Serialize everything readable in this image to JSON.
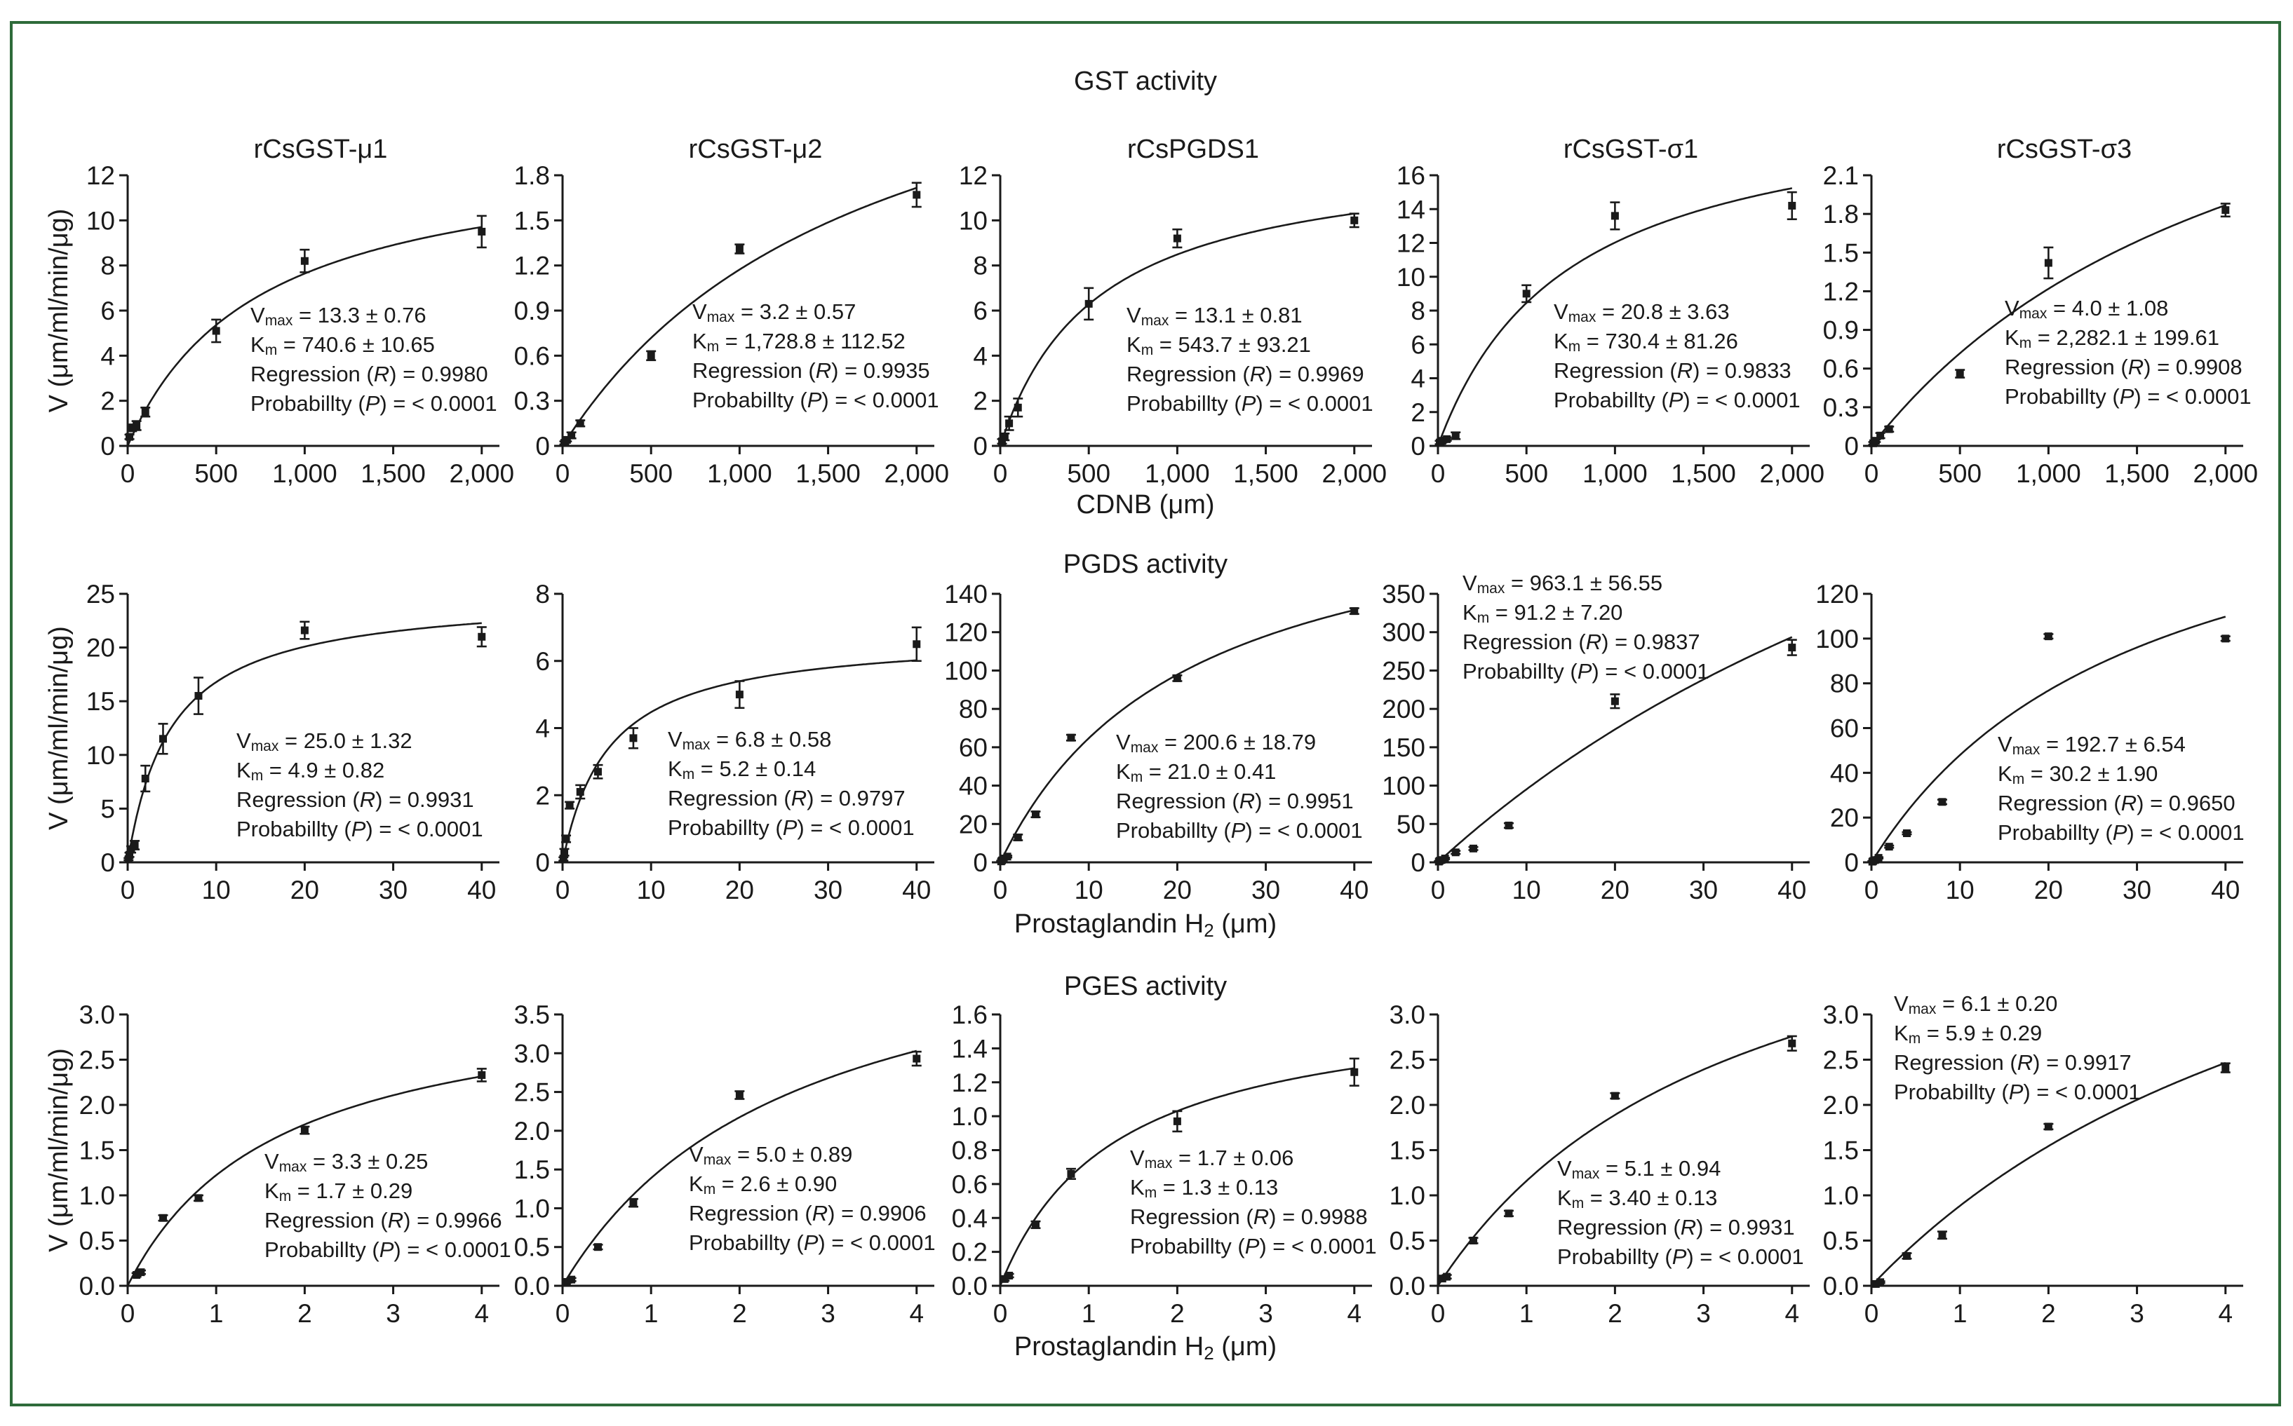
{
  "figure": {
    "border_color": "#2e6b3a",
    "ink_color": "#1a1a1a",
    "rows": [
      {
        "title": "GST activity",
        "x_axis_label": "CDNB (μm)"
      },
      {
        "title": "PGDS activity",
        "x_axis_label_main": "Prostaglandin H",
        "x_axis_label_sub": "2",
        "x_axis_label_tail": " (μm)"
      },
      {
        "title": "PGES activity",
        "x_axis_label_main": "Prostaglandin H",
        "x_axis_label_sub": "2",
        "x_axis_label_tail": " (μm)"
      }
    ],
    "y_axis_label": "V (μm/ml/min/μg)",
    "stats_labels": {
      "vmax_main": "V",
      "vmax_sub": "max",
      "km_main": "K",
      "km_sub": "m",
      "regression_prefix": "Regression (",
      "regression_var": "R",
      "probability_prefix": "Probabillty (",
      "probability_var": "P",
      "probability_value": "< 0.0001"
    }
  },
  "chart_data": [
    {
      "type": "scatter",
      "row": 0,
      "col": 0,
      "title": "rCsGST-μ1",
      "xlim": [
        0,
        2100
      ],
      "ylim": [
        0,
        12
      ],
      "xticks": [
        0,
        500,
        1000,
        1500,
        2000
      ],
      "xtick_labels": [
        "0",
        "500",
        "1,000",
        "1,500",
        "2,000"
      ],
      "yticks": [
        0,
        2,
        4,
        6,
        8,
        10,
        12
      ],
      "ytick_labels": [
        "0",
        "2",
        "4",
        "6",
        "8",
        "10",
        "12"
      ],
      "x": [
        10,
        25,
        50,
        100,
        500,
        1000,
        2000
      ],
      "y": [
        0.4,
        0.8,
        0.9,
        1.5,
        5.1,
        8.2,
        9.5
      ],
      "err": [
        0.1,
        0.15,
        0.2,
        0.2,
        0.5,
        0.5,
        0.7
      ],
      "vmax": 13.3,
      "km": 740.6,
      "fit_vmax": 13.3,
      "fit_km": 740.6,
      "vmax_text": "13.3 ± 0.76",
      "km_text": "740.6 ± 10.65",
      "regression": "0.9980"
    },
    {
      "type": "scatter",
      "row": 0,
      "col": 1,
      "title": "rCsGST-μ2",
      "xlim": [
        0,
        2100
      ],
      "ylim": [
        0,
        1.8
      ],
      "xticks": [
        0,
        500,
        1000,
        1500,
        2000
      ],
      "xtick_labels": [
        "0",
        "500",
        "1,000",
        "1,500",
        "2,000"
      ],
      "yticks": [
        0,
        0.3,
        0.6,
        0.9,
        1.2,
        1.5,
        1.8
      ],
      "ytick_labels": [
        "0",
        "0.3",
        "0.6",
        "0.9",
        "1.2",
        "1.5",
        "1.8"
      ],
      "x": [
        10,
        25,
        50,
        100,
        500,
        1000,
        2000
      ],
      "y": [
        0.02,
        0.04,
        0.07,
        0.15,
        0.6,
        1.31,
        1.67
      ],
      "err": [
        0.01,
        0.01,
        0.02,
        0.02,
        0.03,
        0.03,
        0.08
      ],
      "vmax": 3.2,
      "km": 1728.8,
      "fit_vmax": 3.2,
      "fit_km": 1728.8,
      "vmax_text": "3.2 ± 0.57",
      "km_text": "1,728.8 ± 112.52",
      "regression": "0.9935"
    },
    {
      "type": "scatter",
      "row": 0,
      "col": 2,
      "title": "rCsPGDS1",
      "xlim": [
        0,
        2100
      ],
      "ylim": [
        0,
        12
      ],
      "xticks": [
        0,
        500,
        1000,
        1500,
        2000
      ],
      "xtick_labels": [
        "0",
        "500",
        "1,000",
        "1,500",
        "2,000"
      ],
      "yticks": [
        0,
        2,
        4,
        6,
        8,
        10,
        12
      ],
      "ytick_labels": [
        "0",
        "2",
        "4",
        "6",
        "8",
        "10",
        "12"
      ],
      "x": [
        10,
        25,
        50,
        100,
        500,
        1000,
        2000
      ],
      "y": [
        0.2,
        0.4,
        1.0,
        1.7,
        6.3,
        9.2,
        10.0
      ],
      "err": [
        0.1,
        0.15,
        0.3,
        0.4,
        0.7,
        0.4,
        0.3
      ],
      "vmax": 13.1,
      "km": 543.7,
      "fit_vmax": 13.1,
      "fit_km": 543.7,
      "vmax_text": "13.1 ± 0.81",
      "km_text": "543.7 ± 93.21",
      "regression": "0.9969"
    },
    {
      "type": "scatter",
      "row": 0,
      "col": 3,
      "title": "rCsGST-σ1",
      "xlim": [
        0,
        2100
      ],
      "ylim": [
        0,
        16
      ],
      "xticks": [
        0,
        500,
        1000,
        1500,
        2000
      ],
      "xtick_labels": [
        "0",
        "500",
        "1,000",
        "1,500",
        "2,000"
      ],
      "yticks": [
        0,
        2,
        4,
        6,
        8,
        10,
        12,
        14,
        16
      ],
      "ytick_labels": [
        "0",
        "2",
        "4",
        "6",
        "8",
        "10",
        "12",
        "14",
        "16"
      ],
      "x": [
        10,
        25,
        50,
        100,
        500,
        1000,
        2000
      ],
      "y": [
        0.2,
        0.3,
        0.4,
        0.6,
        9.0,
        13.6,
        14.2
      ],
      "err": [
        0.1,
        0.1,
        0.1,
        0.2,
        0.5,
        0.8,
        0.8
      ],
      "vmax": 20.8,
      "km": 730.4,
      "fit_vmax": 20.8,
      "fit_km": 730.4,
      "vmax_text": "20.8 ± 3.63",
      "km_text": "730.4 ± 81.26",
      "regression": "0.9833"
    },
    {
      "type": "scatter",
      "row": 0,
      "col": 4,
      "title": "rCsGST-σ3",
      "xlim": [
        0,
        2100
      ],
      "ylim": [
        0,
        2.1
      ],
      "xticks": [
        0,
        500,
        1000,
        1500,
        2000
      ],
      "xtick_labels": [
        "0",
        "500",
        "1,000",
        "1,500",
        "2,000"
      ],
      "yticks": [
        0,
        0.3,
        0.6,
        0.9,
        1.2,
        1.5,
        1.8,
        2.1
      ],
      "ytick_labels": [
        "0",
        "0.3",
        "0.6",
        "0.9",
        "1.2",
        "1.5",
        "1.8",
        "2.1"
      ],
      "x": [
        10,
        25,
        50,
        100,
        500,
        1000,
        2000
      ],
      "y": [
        0.02,
        0.04,
        0.08,
        0.13,
        0.56,
        1.42,
        1.83
      ],
      "err": [
        0.01,
        0.01,
        0.02,
        0.02,
        0.03,
        0.12,
        0.05
      ],
      "vmax": 4.0,
      "km": 2282.1,
      "fit_vmax": 4.0,
      "fit_km": 2282.1,
      "vmax_text": "4.0 ± 1.08",
      "km_text": "2,282.1 ± 199.61",
      "regression": "0.9908"
    },
    {
      "type": "scatter",
      "row": 1,
      "col": 0,
      "title": "",
      "xlim": [
        0,
        42
      ],
      "ylim": [
        0,
        25
      ],
      "xticks": [
        0,
        10,
        20,
        30,
        40
      ],
      "xtick_labels": [
        "0",
        "10",
        "20",
        "30",
        "40"
      ],
      "yticks": [
        0,
        5,
        10,
        15,
        20,
        25
      ],
      "ytick_labels": [
        "0",
        "5",
        "10",
        "15",
        "20",
        "25"
      ],
      "x": [
        0.1,
        0.2,
        0.4,
        0.8,
        2,
        4,
        8,
        20,
        40
      ],
      "y": [
        0.3,
        0.7,
        1.2,
        1.6,
        7.8,
        11.5,
        15.5,
        21.6,
        21.0
      ],
      "err": [
        0.1,
        0.2,
        0.3,
        0.4,
        1.2,
        1.4,
        1.7,
        0.8,
        0.9
      ],
      "vmax": 25.0,
      "km": 4.9,
      "fit_vmax": 25.0,
      "fit_km": 4.9,
      "vmax_text": "25.0 ± 1.32",
      "km_text": "4.9 ± 0.82",
      "regression": "0.9931"
    },
    {
      "type": "scatter",
      "row": 1,
      "col": 1,
      "title": "",
      "xlim": [
        0,
        42
      ],
      "ylim": [
        0,
        8
      ],
      "xticks": [
        0,
        10,
        20,
        30,
        40
      ],
      "xtick_labels": [
        "0",
        "10",
        "20",
        "30",
        "40"
      ],
      "yticks": [
        0,
        2,
        4,
        6,
        8
      ],
      "ytick_labels": [
        "0",
        "2",
        "4",
        "6",
        "8"
      ],
      "x": [
        0.1,
        0.2,
        0.4,
        0.8,
        2,
        4,
        8,
        20,
        40
      ],
      "y": [
        0.1,
        0.3,
        0.7,
        1.7,
        2.1,
        2.7,
        3.7,
        5.0,
        6.5
      ],
      "err": [
        0.05,
        0.1,
        0.1,
        0.1,
        0.2,
        0.2,
        0.3,
        0.4,
        0.5
      ],
      "vmax": 6.8,
      "km": 5.2,
      "fit_vmax": 6.8,
      "fit_km": 5.2,
      "vmax_text": "6.8 ± 0.58",
      "km_text": "5.2 ± 0.14",
      "regression": "0.9797"
    },
    {
      "type": "scatter",
      "row": 1,
      "col": 2,
      "title": "",
      "xlim": [
        0,
        42
      ],
      "ylim": [
        0,
        140
      ],
      "xticks": [
        0,
        10,
        20,
        30,
        40
      ],
      "xtick_labels": [
        "0",
        "10",
        "20",
        "30",
        "40"
      ],
      "yticks": [
        0,
        20,
        40,
        60,
        80,
        100,
        120,
        140
      ],
      "ytick_labels": [
        "0",
        "20",
        "40",
        "60",
        "80",
        "100",
        "120",
        "140"
      ],
      "x": [
        0.1,
        0.2,
        0.4,
        0.8,
        2,
        4,
        8,
        20,
        40
      ],
      "y": [
        0.5,
        1,
        2,
        3,
        13,
        25,
        65,
        96,
        131
      ],
      "err": [
        0.3,
        0.3,
        0.5,
        0.5,
        1.5,
        1.5,
        1.5,
        1.5,
        1.5
      ],
      "vmax": 200.6,
      "km": 21.0,
      "fit_vmax": 200.6,
      "fit_km": 21.0,
      "vmax_text": "200.6 ± 18.79",
      "km_text": "21.0 ± 0.41",
      "regression": "0.9951"
    },
    {
      "type": "scatter",
      "row": 1,
      "col": 3,
      "title": "",
      "xlim": [
        0,
        42
      ],
      "ylim": [
        0,
        350
      ],
      "xticks": [
        0,
        10,
        20,
        30,
        40
      ],
      "xtick_labels": [
        "0",
        "10",
        "20",
        "30",
        "40"
      ],
      "yticks": [
        0,
        50,
        100,
        150,
        200,
        250,
        300,
        350
      ],
      "ytick_labels": [
        "0",
        "50",
        "100",
        "150",
        "200",
        "250",
        "300",
        "350"
      ],
      "x": [
        0.1,
        0.2,
        0.4,
        0.8,
        2,
        4,
        8,
        20,
        40
      ],
      "y": [
        1,
        2,
        3,
        5,
        13,
        18,
        48,
        210,
        280
      ],
      "err": [
        0.5,
        0.5,
        1,
        1,
        2,
        2,
        3,
        9,
        10
      ],
      "vmax": 963.1,
      "km": 91.2,
      "fit_vmax": 963.1,
      "fit_km": 91.2,
      "vmax_text": "963.1 ± 56.55",
      "km_text": "91.2 ± 7.20",
      "regression": "0.9837"
    },
    {
      "type": "scatter",
      "row": 1,
      "col": 4,
      "title": "",
      "xlim": [
        0,
        42
      ],
      "ylim": [
        0,
        120
      ],
      "xticks": [
        0,
        10,
        20,
        30,
        40
      ],
      "xtick_labels": [
        "0",
        "10",
        "20",
        "30",
        "40"
      ],
      "yticks": [
        0,
        20,
        40,
        60,
        80,
        100,
        120
      ],
      "ytick_labels": [
        "0",
        "20",
        "40",
        "60",
        "80",
        "100",
        "120"
      ],
      "x": [
        0.1,
        0.2,
        0.4,
        0.8,
        2,
        4,
        8,
        20,
        40
      ],
      "y": [
        0.3,
        0.6,
        1,
        2,
        7,
        13,
        27,
        101,
        100
      ],
      "err": [
        0.2,
        0.2,
        0.3,
        0.3,
        0.5,
        0.5,
        1,
        1,
        1
      ],
      "vmax": 192.7,
      "km": 30.2,
      "fit_vmax": 192.7,
      "fit_km": 30.2,
      "vmax_text": "192.7 ± 6.54",
      "km_text": "30.2 ± 1.90",
      "regression": "0.9650"
    },
    {
      "type": "scatter",
      "row": 2,
      "col": 0,
      "title": "",
      "xlim": [
        0,
        4.2
      ],
      "ylim": [
        0,
        3.0
      ],
      "xticks": [
        0,
        1,
        2,
        3,
        4
      ],
      "xtick_labels": [
        "0",
        "1",
        "2",
        "3",
        "4"
      ],
      "yticks": [
        0,
        0.5,
        1.0,
        1.5,
        2.0,
        2.5,
        3.0
      ],
      "ytick_labels": [
        "0.0",
        "0.5",
        "1.0",
        "1.5",
        "2.0",
        "2.5",
        "3.0"
      ],
      "x": [
        0.1,
        0.15,
        0.4,
        0.8,
        2,
        4
      ],
      "y": [
        0.12,
        0.15,
        0.75,
        0.97,
        1.72,
        2.33
      ],
      "err": [
        0.02,
        0.02,
        0.03,
        0.03,
        0.04,
        0.07
      ],
      "vmax": 3.3,
      "km": 1.7,
      "fit_vmax": 3.3,
      "fit_km": 1.7,
      "vmax_text": "3.3 ± 0.25",
      "km_text": "1.7 ± 0.29",
      "regression": "0.9966"
    },
    {
      "type": "scatter",
      "row": 2,
      "col": 1,
      "title": "",
      "xlim": [
        0,
        4.2
      ],
      "ylim": [
        0,
        3.5
      ],
      "xticks": [
        0,
        1,
        2,
        3,
        4
      ],
      "xtick_labels": [
        "0",
        "1",
        "2",
        "3",
        "4"
      ],
      "yticks": [
        0,
        0.5,
        1.0,
        1.5,
        2.0,
        2.5,
        3.0,
        3.5
      ],
      "ytick_labels": [
        "0.0",
        "0.5",
        "1.0",
        "1.5",
        "2.0",
        "2.5",
        "3.0",
        "3.5"
      ],
      "x": [
        0.05,
        0.1,
        0.4,
        0.8,
        2,
        4
      ],
      "y": [
        0.05,
        0.08,
        0.5,
        1.07,
        2.46,
        2.93
      ],
      "err": [
        0.01,
        0.02,
        0.03,
        0.05,
        0.05,
        0.09
      ],
      "vmax": 5.0,
      "km": 2.6,
      "fit_vmax": 5.0,
      "fit_km": 2.6,
      "vmax_text": "5.0 ± 0.89",
      "km_text": "2.6 ± 0.90",
      "regression": "0.9906"
    },
    {
      "type": "scatter",
      "row": 2,
      "col": 2,
      "title": "",
      "xlim": [
        0,
        4.2
      ],
      "ylim": [
        0,
        1.6
      ],
      "xticks": [
        0,
        1,
        2,
        3,
        4
      ],
      "xtick_labels": [
        "0",
        "1",
        "2",
        "3",
        "4"
      ],
      "yticks": [
        0,
        0.2,
        0.4,
        0.6,
        0.8,
        1.0,
        1.2,
        1.4,
        1.6
      ],
      "ytick_labels": [
        "0.0",
        "0.2",
        "0.4",
        "0.6",
        "0.8",
        "1.0",
        "1.2",
        "1.4",
        "1.6"
      ],
      "x": [
        0.05,
        0.1,
        0.4,
        0.8,
        2,
        4
      ],
      "y": [
        0.04,
        0.06,
        0.36,
        0.66,
        0.97,
        1.26
      ],
      "err": [
        0.01,
        0.01,
        0.02,
        0.03,
        0.06,
        0.08
      ],
      "vmax": 1.7,
      "km": 1.3,
      "fit_vmax": 1.7,
      "fit_km": 1.3,
      "vmax_text": "1.7 ± 0.06",
      "km_text": "1.3 ± 0.13",
      "regression": "0.9988"
    },
    {
      "type": "scatter",
      "row": 2,
      "col": 3,
      "title": "",
      "xlim": [
        0,
        4.2
      ],
      "ylim": [
        0,
        3.0
      ],
      "xticks": [
        0,
        1,
        2,
        3,
        4
      ],
      "xtick_labels": [
        "0",
        "1",
        "2",
        "3",
        "4"
      ],
      "yticks": [
        0,
        0.5,
        1.0,
        1.5,
        2.0,
        2.5,
        3.0
      ],
      "ytick_labels": [
        "0.0",
        "0.5",
        "1.0",
        "1.5",
        "2.0",
        "2.5",
        "3.0"
      ],
      "x": [
        0.05,
        0.1,
        0.4,
        0.8,
        2,
        4
      ],
      "y": [
        0.08,
        0.1,
        0.5,
        0.8,
        2.1,
        2.68
      ],
      "err": [
        0.01,
        0.02,
        0.03,
        0.03,
        0.03,
        0.08
      ],
      "vmax": 5.1,
      "km": 3.4,
      "fit_vmax": 5.1,
      "fit_km": 3.4,
      "vmax_text": "5.1 ± 0.94",
      "km_text": "3.40 ± 0.13",
      "regression": "0.9931"
    },
    {
      "type": "scatter",
      "row": 2,
      "col": 4,
      "title": "",
      "xlim": [
        0,
        4.2
      ],
      "ylim": [
        0,
        3.0
      ],
      "xticks": [
        0,
        1,
        2,
        3,
        4
      ],
      "xtick_labels": [
        "0",
        "1",
        "2",
        "3",
        "4"
      ],
      "yticks": [
        0,
        0.5,
        1.0,
        1.5,
        2.0,
        2.5,
        3.0
      ],
      "ytick_labels": [
        "0.0",
        "0.5",
        "1.0",
        "1.5",
        "2.0",
        "2.5",
        "3.0"
      ],
      "x": [
        0.05,
        0.1,
        0.4,
        0.8,
        2,
        4
      ],
      "y": [
        0.02,
        0.04,
        0.33,
        0.56,
        1.76,
        2.41
      ],
      "err": [
        0.01,
        0.01,
        0.03,
        0.04,
        0.03,
        0.05
      ],
      "vmax": 6.1,
      "km": 5.9,
      "fit_vmax": 6.1,
      "fit_km": 5.9,
      "vmax_text": "6.1 ± 0.20",
      "km_text": "5.9 ± 0.29",
      "regression": "0.9917"
    }
  ]
}
